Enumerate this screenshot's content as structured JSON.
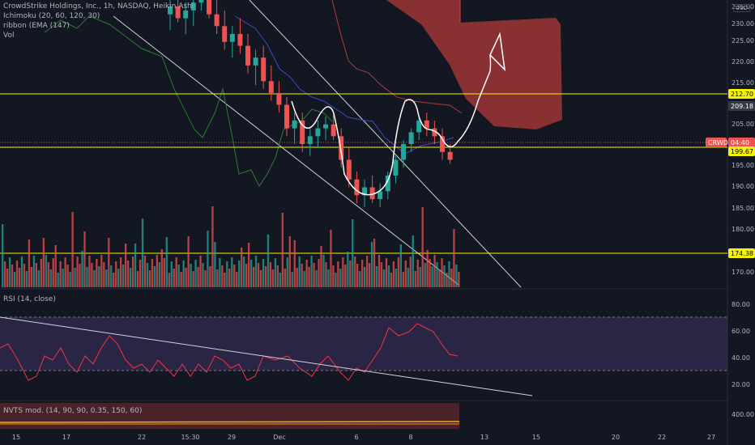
{
  "legend": {
    "symbol": "CrowdStrike Holdings, Inc., 1h, NASDAQ, Heikin Ashi",
    "ichimoku": "Ichimoku (20, 60, 120, 30)",
    "ribbon": "ribbon (EMA (147)",
    "vol": "Vol"
  },
  "currency": "USD",
  "price_axis": {
    "ticks": [
      "235.00",
      "230.00",
      "225.00",
      "220.00",
      "215.00",
      "205.00",
      "200.00",
      "195.00",
      "190.00",
      "185.00",
      "180.00",
      "170.00"
    ],
    "badges": [
      {
        "label": "212.70",
        "bg": "#f5f500",
        "fg": "#000000"
      },
      {
        "label": "209.18",
        "bg": "#363a45",
        "fg": "#ffffff"
      },
      {
        "label": "CRWD",
        "bg": "#ef5350",
        "fg": "#ffffff"
      },
      {
        "label": "04:40",
        "bg": "#ef5350",
        "fg": "#ffffff"
      },
      {
        "label": "199.67",
        "bg": "#f5f500",
        "fg": "#000000"
      },
      {
        "label": "174.38",
        "bg": "#f5f500",
        "fg": "#000000"
      }
    ]
  },
  "time_axis": [
    "15",
    "17",
    "22",
    "15:30",
    "29",
    "Dec",
    "6",
    "8",
    "13",
    "15",
    "20",
    "22",
    "27"
  ],
  "rsi": {
    "label": "RSI (14, close)",
    "ticks": [
      "80.00",
      "60.00",
      "40.00",
      "20.00"
    ]
  },
  "nvts": {
    "label": "NVTS mod. (14, 90, 90, 0.35, 150, 60)",
    "ticks": [
      "400.00"
    ]
  },
  "colors": {
    "up": "#26a69a",
    "down": "#ef5350",
    "horizontal": "#f5f500",
    "rsi": "#f23645",
    "rsi_band": "#7e57c2"
  },
  "chart_data": {
    "type": "candlestick",
    "series": [
      {
        "name": "CRWD",
        "ohlc": [
          [
            237,
            241,
            233,
            239
          ],
          [
            239,
            243,
            235,
            236
          ],
          [
            236,
            240,
            232,
            238
          ],
          [
            238,
            242,
            234,
            240
          ],
          [
            240,
            245,
            238,
            243
          ],
          [
            243,
            246,
            236,
            237
          ],
          [
            237,
            241,
            232,
            234
          ],
          [
            234,
            238,
            228,
            230
          ],
          [
            230,
            234,
            226,
            232
          ],
          [
            232,
            236,
            227,
            229
          ],
          [
            229,
            232,
            222,
            224
          ],
          [
            224,
            228,
            219,
            226
          ],
          [
            226,
            229,
            218,
            220
          ],
          [
            220,
            224,
            215,
            217
          ],
          [
            217,
            220,
            212,
            214
          ],
          [
            214,
            216,
            206,
            208
          ],
          [
            208,
            212,
            204,
            210
          ],
          [
            210,
            212,
            202,
            204
          ],
          [
            204,
            208,
            201,
            206
          ],
          [
            206,
            210,
            203,
            208
          ],
          [
            208,
            211,
            205,
            209
          ],
          [
            209,
            212,
            205,
            206
          ],
          [
            206,
            208,
            198,
            200
          ],
          [
            200,
            203,
            193,
            195
          ],
          [
            195,
            197,
            189,
            191
          ],
          [
            191,
            195,
            188,
            193
          ],
          [
            193,
            196,
            189,
            190
          ],
          [
            190,
            194,
            188,
            192
          ],
          [
            192,
            197,
            190,
            196
          ],
          [
            196,
            201,
            194,
            200
          ],
          [
            200,
            205,
            198,
            204
          ],
          [
            204,
            208,
            202,
            207
          ],
          [
            207,
            211,
            205,
            210
          ],
          [
            210,
            212,
            206,
            208
          ],
          [
            208,
            210,
            204,
            206
          ],
          [
            206,
            208,
            200,
            202
          ],
          [
            202,
            204,
            199,
            200
          ]
        ]
      }
    ],
    "y_range": [
      168,
      240
    ],
    "horizontal_levels": [
      212.7,
      199.67,
      174.38
    ],
    "last_price": 209.18
  }
}
